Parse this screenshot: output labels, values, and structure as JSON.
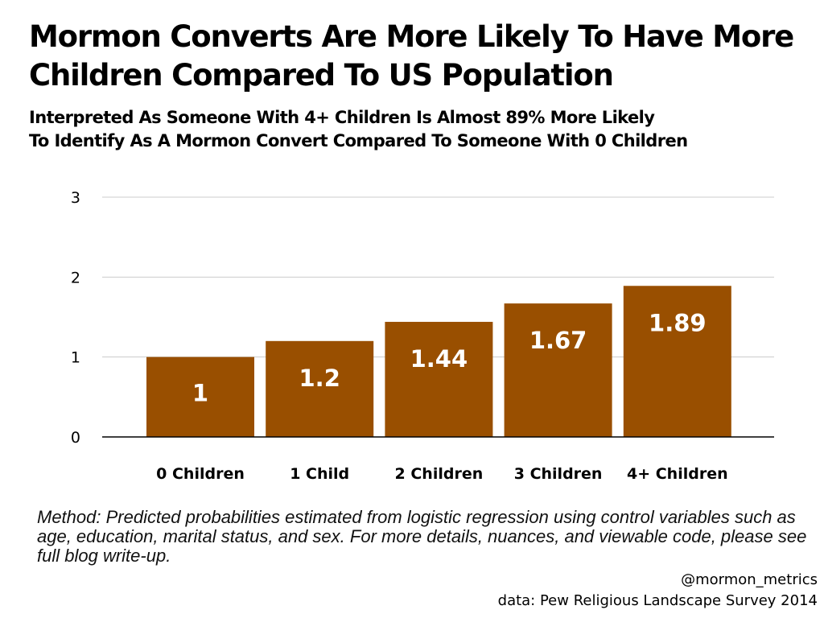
{
  "title_lines": [
    "Mormon Converts Are More Likely To Have More",
    "Children Compared To US Population"
  ],
  "subtitle_lines": [
    "Interpreted As Someone With 4+ Children Is Almost 89% More Likely",
    "To Identify As A Mormon Convert Compared To Someone With 0 Children"
  ],
  "chart_data": {
    "type": "bar",
    "title": "Mormon Converts Are More Likely To Have More Children Compared To US Population",
    "categories": [
      "0 Children",
      "1 Child",
      "2 Children",
      "3 Children",
      "4+ Children"
    ],
    "values": [
      1,
      1.2,
      1.44,
      1.67,
      1.89
    ],
    "value_labels": [
      "1",
      "1.2",
      "1.44",
      "1.67",
      "1.89"
    ],
    "ylim": [
      0,
      3
    ],
    "yticks": [
      "0",
      "1",
      "2",
      "3"
    ],
    "grid": true,
    "xlabel": "",
    "ylabel": "",
    "bar_color": "#994f00",
    "label_color": "#ffffff",
    "grid_color": "#cccccc"
  },
  "method_note": "Method: Predicted probabilities estimated from logistic regression using control variables such as age, education, marital status, and sex. For more details, nuances, and viewable code, please see full blog write-up.",
  "credit_handle": "@mormon_metrics",
  "credit_source": "data: Pew Religious Landscape Survey 2014"
}
